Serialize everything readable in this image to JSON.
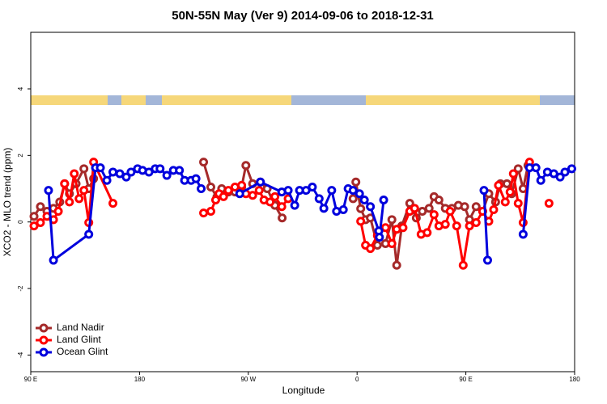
{
  "chart_data": {
    "type": "line",
    "title": "50N-55N May (Ver 9)   2014-09-06 to 2018-12-31",
    "x_label": "Longitude",
    "y_label": "XCO2 - MLO trend (ppm)",
    "xlim": [
      90,
      540
    ],
    "xticks": [
      {
        "value": 90,
        "label": "90 E"
      },
      {
        "value": 180,
        "label": "180"
      },
      {
        "value": 270,
        "label": "90 W"
      },
      {
        "value": 360,
        "label": "0"
      },
      {
        "value": 450,
        "label": "90 E"
      },
      {
        "value": 540,
        "label": "180"
      }
    ],
    "ylim": [
      -4.5,
      5.7
    ],
    "yticks": [
      -4,
      -2,
      0,
      2,
      4
    ],
    "legend": "lower left",
    "series": [
      {
        "name": "Land Nadir",
        "color": "#a52a2a",
        "x": [
          92.7,
          98,
          103.4,
          108.8,
          114,
          118,
          122,
          127.5,
          134,
          138,
          142,
          null,
          233,
          239,
          244,
          248,
          253.5,
          259,
          264.5,
          268,
          273.6,
          280,
          285.6,
          292,
          298,
          null,
          356.7,
          359,
          363,
          367,
          371,
          376.8,
          383.5,
          388.8,
          392.8,
          397,
          403.6,
          409,
          414,
          419.6,
          423.7,
          427.7,
          433,
          438.5,
          443.8,
          449,
          453,
          458.5,
          463.9,
          469,
          474.6,
          478.6,
          484,
          488,
          493.3,
          497.4,
          501.4
        ],
        "values": [
          0.17,
          0.46,
          0.32,
          0.41,
          0.6,
          1.15,
          0.85,
          1.15,
          1.6,
          1.0,
          1.3,
          null,
          1.8,
          1.05,
          0.75,
          1.0,
          0.9,
          0.9,
          1.05,
          1.7,
          1.15,
          1.2,
          1.0,
          0.5,
          0.12,
          null,
          0.7,
          1.2,
          0.4,
          0.07,
          0.12,
          -0.7,
          -0.65,
          0.07,
          -1.3,
          -0.12,
          0.56,
          0.12,
          0.32,
          0.41,
          0.76,
          0.66,
          0.41,
          0.41,
          0.5,
          0.46,
          0.07,
          0.46,
          0.32,
          0.85,
          0.6,
          1.15,
          1.15,
          0.85,
          1.6,
          1.0,
          1.7
        ]
      },
      {
        "name": "Land Glint",
        "color": "#ff0000",
        "x": [
          92.7,
          98,
          103.4,
          108.8,
          112.8,
          118,
          122,
          126,
          130,
          134,
          138,
          142,
          158,
          null,
          233,
          239,
          243,
          245.8,
          249.5,
          253.5,
          259,
          264.5,
          268,
          273.6,
          279,
          283,
          288,
          292,
          297.7,
          303,
          null,
          363,
          367,
          371,
          376.8,
          383.5,
          388.8,
          392.8,
          398,
          403.6,
          407.6,
          413,
          418,
          423.7,
          427.7,
          433,
          437,
          442.4,
          447.8,
          453,
          458.5,
          463.9,
          469,
          473,
          477,
          482.6,
          486.6,
          489.3,
          493.3,
          497.4,
          502.7,
          null,
          518.8
        ],
        "values": [
          -0.12,
          -0.02,
          0.17,
          0.07,
          0.32,
          1.15,
          0.6,
          1.45,
          0.7,
          0.95,
          -0.02,
          1.8,
          0.56,
          null,
          0.27,
          0.32,
          0.66,
          0.85,
          0.76,
          0.95,
          1.05,
          1.1,
          0.85,
          0.8,
          0.95,
          0.66,
          0.6,
          0.76,
          0.46,
          0.7,
          null,
          0.02,
          -0.7,
          -0.8,
          -0.41,
          -0.17,
          -0.65,
          -0.22,
          -0.17,
          0.32,
          0.41,
          -0.37,
          -0.32,
          0.22,
          -0.12,
          -0.07,
          0.32,
          -0.12,
          -1.3,
          -0.12,
          -0.02,
          0.32,
          0.02,
          0.37,
          1.1,
          0.6,
          0.9,
          1.45,
          0.56,
          -0.02,
          1.8,
          null,
          0.56
        ]
      },
      {
        "name": "Ocean Glint",
        "color": "#0000dd",
        "x": [
          104.7,
          108.8,
          138,
          143.6,
          147.6,
          153,
          158,
          163.7,
          169,
          173,
          178.4,
          182.5,
          187.8,
          193,
          197,
          202.6,
          208,
          213,
          217.3,
          222.7,
          226.7,
          231,
          null,
          262.9,
          280,
          297.7,
          303,
          308.4,
          312.4,
          317.8,
          323,
          328.6,
          332.5,
          339,
          343,
          348.6,
          352.6,
          356.7,
          362,
          366,
          371,
          378,
          378.5,
          382,
          null,
          465,
          468,
          null,
          497.4,
          502.7,
          508,
          512,
          517.5,
          522.8,
          528,
          532,
          537.6
        ],
        "values": [
          0.95,
          -1.15,
          -0.37,
          1.63,
          1.63,
          1.25,
          1.5,
          1.45,
          1.35,
          1.5,
          1.6,
          1.55,
          1.5,
          1.6,
          1.6,
          1.4,
          1.55,
          1.55,
          1.25,
          1.25,
          1.3,
          1.0,
          null,
          0.85,
          1.2,
          0.9,
          0.95,
          0.5,
          0.95,
          0.95,
          1.05,
          0.7,
          0.41,
          0.95,
          0.32,
          0.37,
          1.0,
          0.95,
          0.85,
          0.66,
          0.46,
          -0.27,
          -0.46,
          0.66,
          null,
          0.95,
          -1.15,
          null,
          -0.37,
          1.63,
          1.63,
          1.25,
          1.5,
          1.45,
          1.35,
          1.5,
          1.6
        ]
      }
    ]
  }
}
